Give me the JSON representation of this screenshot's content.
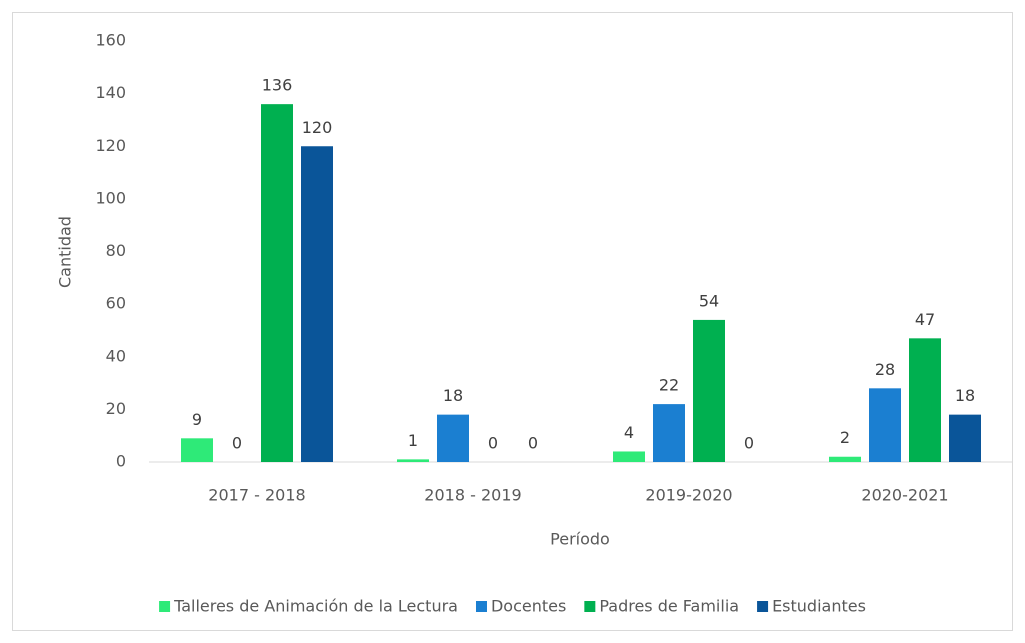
{
  "chart_data": {
    "type": "bar",
    "x_label": "Período",
    "y_label": "Cantidad",
    "categories": [
      "2017 - 2018",
      "2018 - 2019",
      "2019-2020",
      "2020-2021"
    ],
    "series": [
      {
        "name": "Talleres de Animación de la Lectura",
        "color": "#2eea78",
        "values": [
          9,
          1,
          4,
          2
        ]
      },
      {
        "name": "Docentes",
        "color": "#1b7fd1",
        "values": [
          0,
          18,
          22,
          28
        ]
      },
      {
        "name": "Padres de Familia",
        "color": "#00b050",
        "values": [
          136,
          0,
          54,
          47
        ]
      },
      {
        "name": "Estudiantes",
        "color": "#0a5599",
        "values": [
          120,
          0,
          0,
          18
        ]
      }
    ],
    "ylim": [
      0,
      160
    ],
    "yticks": [
      0,
      20,
      40,
      60,
      80,
      100,
      120,
      140,
      160
    ],
    "grid": false,
    "legend": "bottom"
  }
}
